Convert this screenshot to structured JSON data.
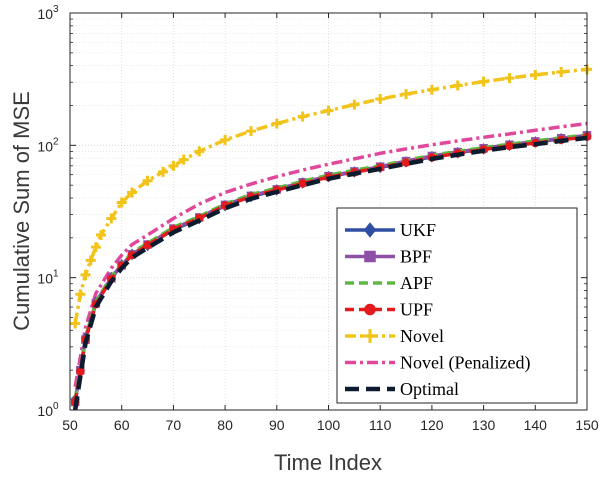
{
  "chart_data": {
    "type": "line",
    "xlabel": "Time Index",
    "ylabel": "Cumulative Sum of MSE",
    "xlim": [
      50,
      150
    ],
    "ylim": [
      1,
      1000
    ],
    "yscale": "log",
    "xticks": [
      "50",
      "60",
      "70",
      "80",
      "90",
      "100",
      "110",
      "120",
      "130",
      "140",
      "150"
    ],
    "yticks": [
      {
        "base": "10",
        "exp": "0"
      },
      {
        "base": "10",
        "exp": "1"
      },
      {
        "base": "10",
        "exp": "2"
      },
      {
        "base": "10",
        "exp": "3"
      }
    ],
    "grid": true,
    "legend_position": "lower-right",
    "series": [
      {
        "name": "UKF",
        "color": "#2F4FA2",
        "marker": "diamond",
        "dash": "solid",
        "x": [
          51,
          52,
          53,
          55,
          58,
          60,
          62,
          65,
          70,
          75,
          80,
          85,
          90,
          95,
          100,
          105,
          110,
          115,
          120,
          125,
          130,
          135,
          140,
          145,
          150
        ],
        "y": [
          1.2,
          2.0,
          3.5,
          6.5,
          10,
          12.5,
          15,
          17.5,
          23,
          28,
          35,
          41,
          46,
          52,
          58,
          63,
          68,
          75,
          82,
          88,
          94,
          100,
          106,
          112,
          118
        ]
      },
      {
        "name": "BPF",
        "color": "#8E4FA6",
        "marker": "square",
        "dash": "solid",
        "x": [
          51,
          52,
          53,
          55,
          58,
          60,
          62,
          65,
          70,
          75,
          80,
          85,
          90,
          95,
          100,
          105,
          110,
          115,
          120,
          125,
          130,
          135,
          140,
          145,
          150
        ],
        "y": [
          1.15,
          2.0,
          3.4,
          6.4,
          9.9,
          12.4,
          15,
          17.8,
          23.5,
          28.5,
          35.5,
          41.5,
          46.5,
          52.5,
          58.5,
          63.5,
          69,
          76,
          83,
          89,
          95,
          101,
          107,
          113,
          119
        ]
      },
      {
        "name": "APF",
        "color": "#5FB845",
        "marker": "none",
        "dash": "dash",
        "x": [
          51,
          52,
          53,
          55,
          58,
          60,
          62,
          65,
          70,
          75,
          80,
          85,
          90,
          95,
          100,
          105,
          110,
          115,
          120,
          125,
          130,
          135,
          140,
          145,
          150
        ],
        "y": [
          1.2,
          2.05,
          3.5,
          6.6,
          10.2,
          12.8,
          15.4,
          18.2,
          24,
          29,
          36,
          42.5,
          47.5,
          53.5,
          59.5,
          65,
          70,
          77,
          84,
          90,
          96,
          102,
          108,
          114,
          120
        ]
      },
      {
        "name": "UPF",
        "color": "#E41A1C",
        "marker": "circle",
        "dash": "dash",
        "x": [
          51,
          52,
          53,
          55,
          58,
          60,
          62,
          65,
          70,
          75,
          80,
          85,
          90,
          95,
          100,
          105,
          110,
          115,
          120,
          125,
          130,
          135,
          140,
          145,
          150
        ],
        "y": [
          1.15,
          1.95,
          3.4,
          6.3,
          9.8,
          12.3,
          14.8,
          17.6,
          23.2,
          28.2,
          35,
          41,
          46,
          51.5,
          57.5,
          62.5,
          68,
          74,
          81,
          87,
          93,
          99,
          104,
          110,
          116
        ]
      },
      {
        "name": "Novel",
        "color": "#F2C318",
        "marker": "plus",
        "dash": "dashdot",
        "x": [
          51,
          52,
          53,
          54,
          55,
          56,
          58,
          60,
          62,
          65,
          68,
          70,
          72,
          75,
          80,
          85,
          90,
          95,
          100,
          105,
          110,
          115,
          120,
          125,
          130,
          135,
          140,
          145,
          150
        ],
        "y": [
          4.5,
          7.5,
          10.5,
          13.5,
          17,
          21,
          28,
          37,
          44,
          54,
          63,
          70,
          78,
          90,
          110,
          128,
          146,
          165,
          183,
          203,
          224,
          244,
          263,
          283,
          303,
          322,
          341,
          358,
          375
        ]
      },
      {
        "name": "Novel (Penalized)",
        "color": "#E0489B",
        "marker": "none",
        "dash": "dashdot",
        "x": [
          51,
          52,
          53,
          55,
          58,
          60,
          62,
          65,
          70,
          75,
          80,
          85,
          90,
          95,
          100,
          105,
          110,
          115,
          120,
          125,
          130,
          135,
          140,
          145,
          150
        ],
        "y": [
          1.5,
          2.5,
          4.2,
          7.6,
          11.8,
          14.8,
          17.8,
          21,
          28,
          36,
          44,
          51,
          58,
          65,
          72,
          79,
          87,
          94,
          101,
          108,
          115,
          122,
          130,
          138,
          146
        ]
      },
      {
        "name": "Optimal",
        "color": "#0D1B2E",
        "marker": "none",
        "dash": "longdash",
        "x": [
          51,
          52,
          53,
          55,
          58,
          60,
          62,
          65,
          70,
          75,
          80,
          85,
          90,
          95,
          100,
          105,
          110,
          115,
          120,
          125,
          130,
          135,
          140,
          145,
          150
        ],
        "y": [
          1.0,
          1.8,
          3.2,
          6.0,
          9.4,
          11.8,
          14.2,
          16.8,
          22,
          27,
          33.5,
          39.5,
          44.5,
          50,
          56,
          61,
          66.5,
          72.5,
          79,
          85,
          91,
          97,
          102,
          108,
          114
        ]
      }
    ]
  }
}
